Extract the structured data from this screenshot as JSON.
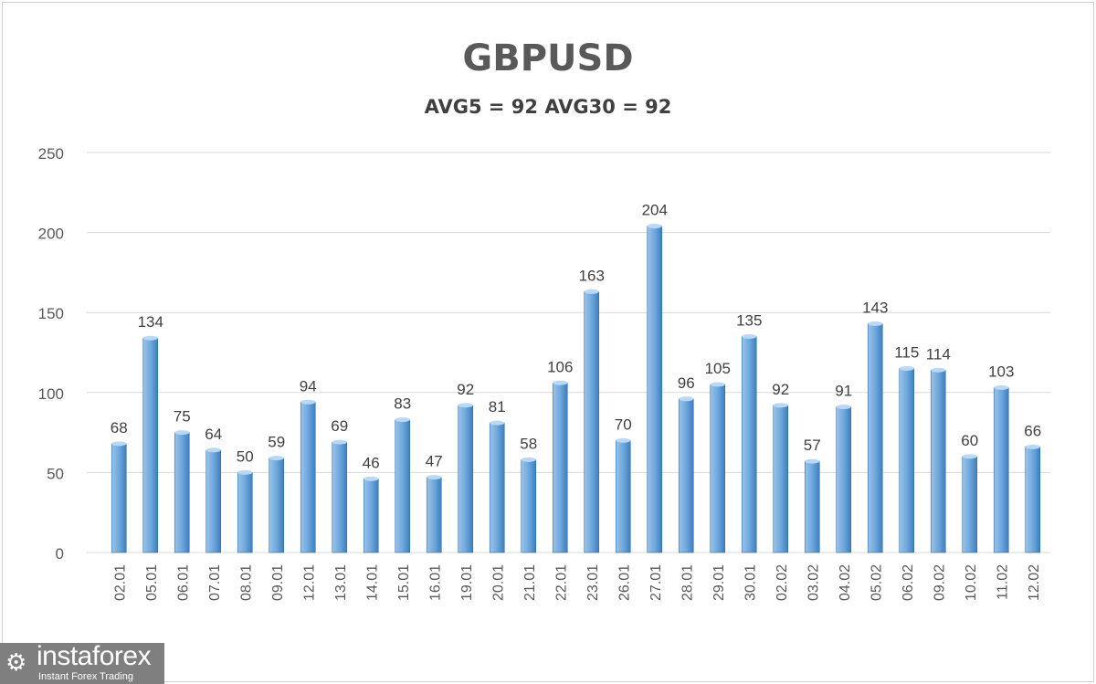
{
  "chart_data": {
    "type": "bar",
    "title": "GBPUSD",
    "subtitle": "AVG5 = 92 AVG30 = 92",
    "categories": [
      "02.01",
      "05.01",
      "06.01",
      "07.01",
      "08.01",
      "09.01",
      "12.01",
      "13.01",
      "14.01",
      "15.01",
      "16.01",
      "19.01",
      "20.01",
      "21.01",
      "22.01",
      "23.01",
      "26.01",
      "27.01",
      "28.01",
      "29.01",
      "30.01",
      "02.02",
      "03.02",
      "04.02",
      "05.02",
      "06.02",
      "09.02",
      "10.02",
      "11.02",
      "12.02"
    ],
    "values": [
      68,
      134,
      75,
      64,
      50,
      59,
      94,
      69,
      46,
      83,
      47,
      92,
      81,
      58,
      106,
      163,
      70,
      204,
      96,
      105,
      135,
      92,
      57,
      91,
      143,
      115,
      114,
      60,
      103,
      66
    ],
    "ylim": [
      0,
      250
    ],
    "yticks": [
      0,
      50,
      100,
      150,
      200,
      250
    ],
    "grid": true,
    "bar_color": "#5b9bd5",
    "xlabel": "",
    "ylabel": ""
  },
  "logo": {
    "name": "instaforex",
    "tagline": "Instant Forex Trading"
  }
}
